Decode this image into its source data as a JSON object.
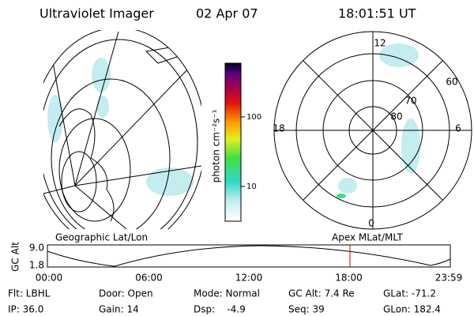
{
  "header": {
    "instrument": "Ultraviolet Imager",
    "date": "02 Apr 07",
    "time": "18:01:51 UT"
  },
  "colorbar": {
    "label": "photon cm⁻²s⁻¹",
    "ticks": [
      "100",
      "10"
    ]
  },
  "left_panel": {
    "label": "Geographic Lat/Lon"
  },
  "right_panel": {
    "label": "Apex MLat/MLT",
    "mlt_labels": [
      "12",
      "18",
      "6",
      "0"
    ],
    "lat_labels": [
      "60",
      "70",
      "80"
    ]
  },
  "altitude_plot": {
    "axis_label": "GC Alt",
    "ticks": [
      "9.0",
      "1.8"
    ],
    "time_ticks": [
      "00:00",
      "06:00",
      "12:00",
      "18:00",
      "23:59"
    ]
  },
  "status": [
    [
      "Flt: LBHL",
      "Door: Open",
      "Mode: Normal",
      "GC Alt: 7.4 Re",
      "GLat: -71.2"
    ],
    [
      "IP: 36.0",
      "Gain: 14",
      "Dsp:    -4.9",
      "Seq: 39",
      "GLon: 182.4"
    ]
  ]
}
